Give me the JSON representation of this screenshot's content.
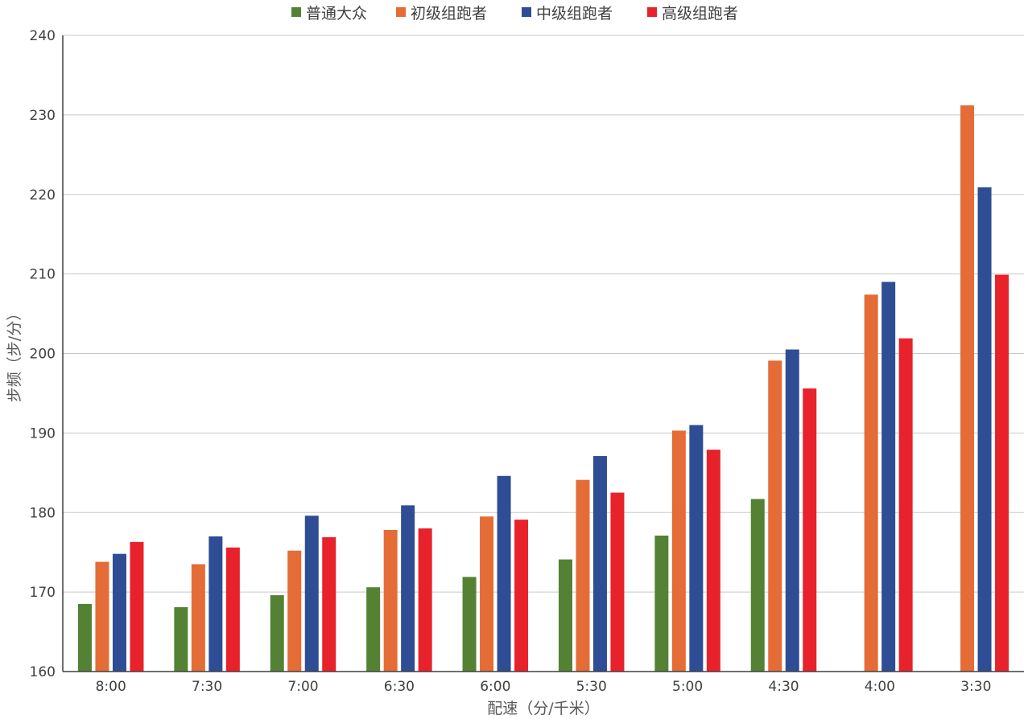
{
  "chart_data": {
    "type": "bar",
    "title": "",
    "xlabel": "配速（分/千米）",
    "ylabel": "步频（步/分）",
    "ylim": [
      160,
      240
    ],
    "yticks": [
      "160",
      "170",
      "180",
      "190",
      "200",
      "210",
      "220",
      "230",
      "240"
    ],
    "categories": [
      "8:00",
      "7:30",
      "7:00",
      "6:30",
      "6:00",
      "5:30",
      "5:00",
      "4:30",
      "4:00",
      "3:30"
    ],
    "legend_position": "top",
    "grid": true,
    "series": [
      {
        "name": "普通大众",
        "color": "#548235",
        "values": [
          168.5,
          168.1,
          169.6,
          170.6,
          171.9,
          174.1,
          177.1,
          181.7,
          null,
          null
        ]
      },
      {
        "name": "初级组跑者",
        "color": "#E46C36",
        "values": [
          173.8,
          173.5,
          175.2,
          177.8,
          179.5,
          184.1,
          190.3,
          199.1,
          207.4,
          231.2
        ]
      },
      {
        "name": "中级组跑者",
        "color": "#2F4D94",
        "values": [
          174.8,
          177.0,
          179.6,
          180.9,
          184.6,
          187.1,
          191.0,
          200.5,
          209.0,
          220.9
        ]
      },
      {
        "name": "高级组跑者",
        "color": "#E8222A",
        "values": [
          176.3,
          175.6,
          176.9,
          178.0,
          179.1,
          182.5,
          187.9,
          195.6,
          201.9,
          209.9
        ]
      }
    ]
  }
}
